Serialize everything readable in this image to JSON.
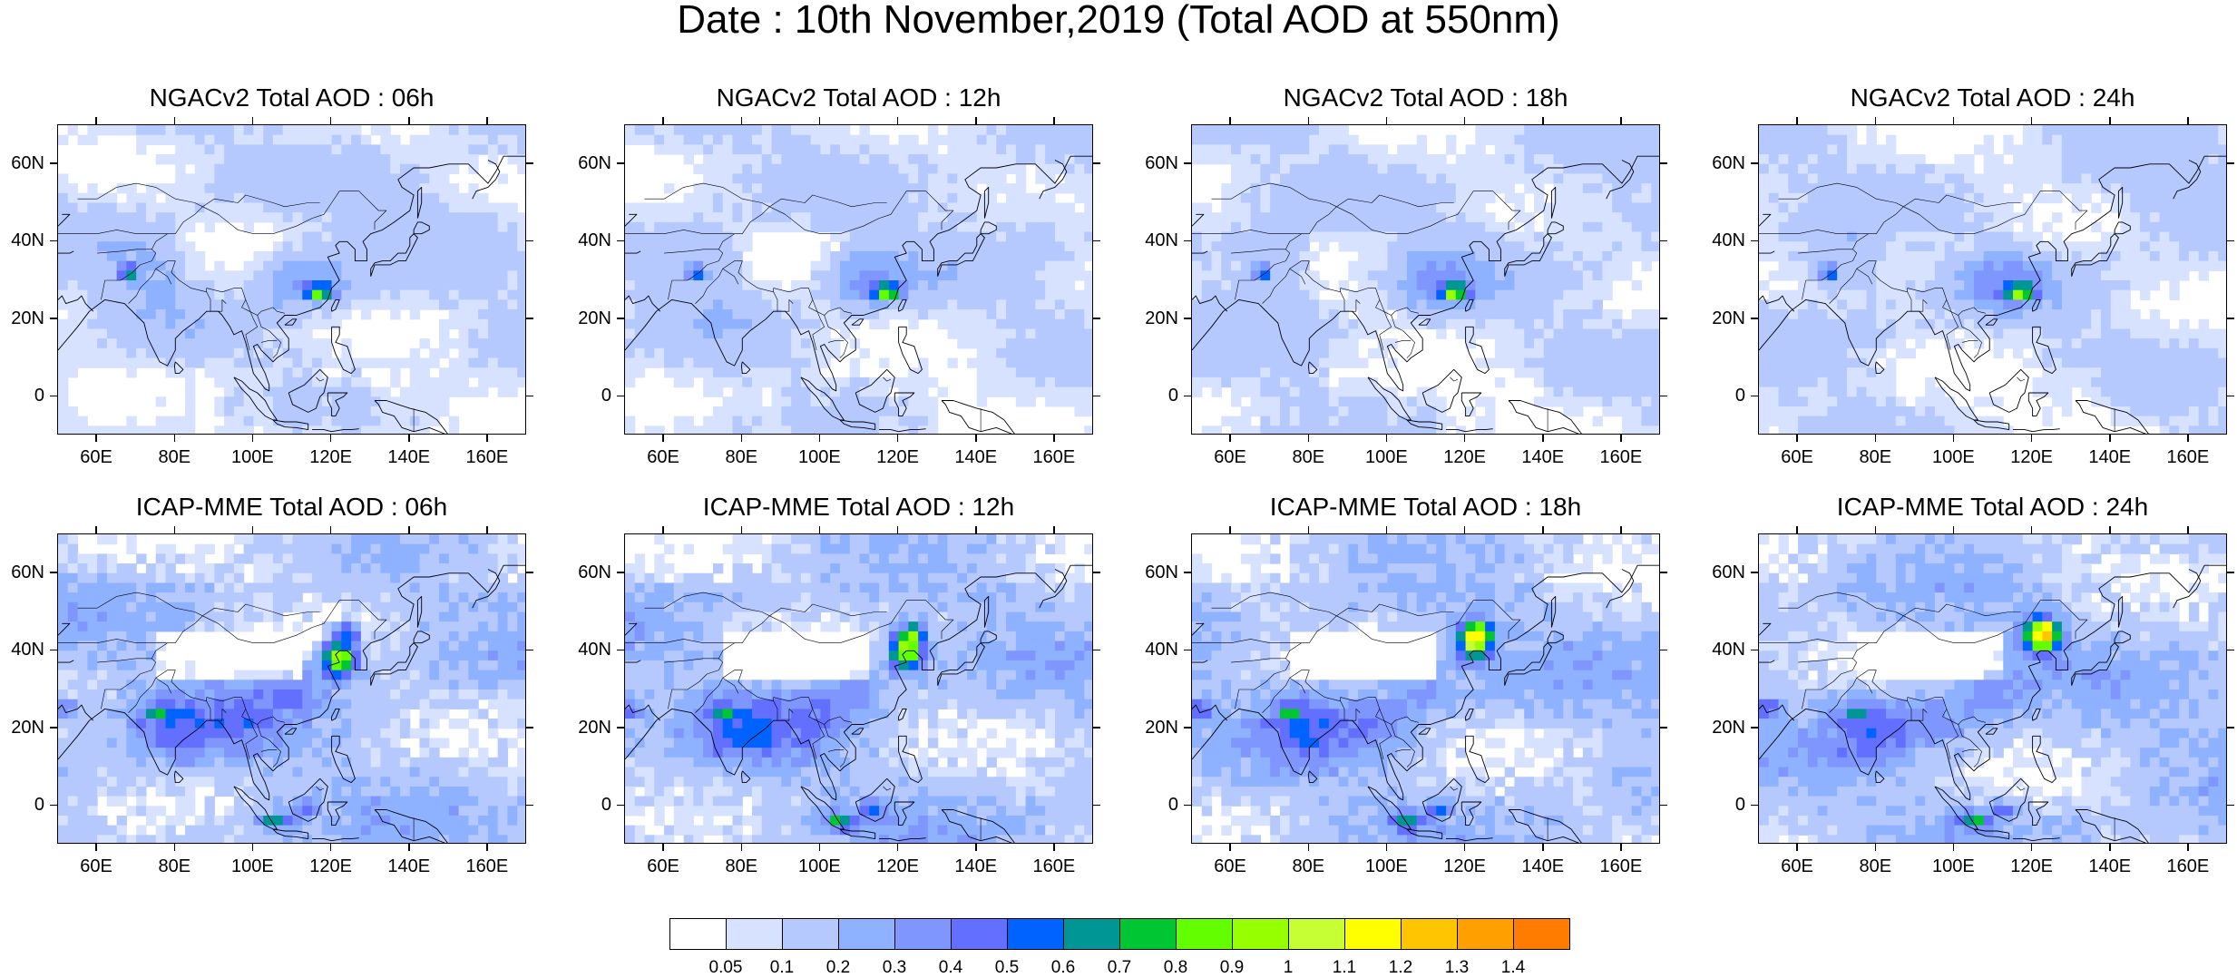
{
  "title": "Date : 10th November,2019 (Total AOD at 550nm)",
  "panels": [
    {
      "title": "NGACv2 Total AOD : 06h",
      "model": "NGACv2",
      "forecast_hour": "06h"
    },
    {
      "title": "NGACv2 Total AOD : 12h",
      "model": "NGACv2",
      "forecast_hour": "12h"
    },
    {
      "title": "NGACv2 Total AOD : 18h",
      "model": "NGACv2",
      "forecast_hour": "18h"
    },
    {
      "title": "NGACv2 Total AOD : 24h",
      "model": "NGACv2",
      "forecast_hour": "24h"
    },
    {
      "title": "ICAP-MME Total AOD : 06h",
      "model": "ICAP-MME",
      "forecast_hour": "06h"
    },
    {
      "title": "ICAP-MME Total AOD : 12h",
      "model": "ICAP-MME",
      "forecast_hour": "12h"
    },
    {
      "title": "ICAP-MME Total AOD : 18h",
      "model": "ICAP-MME",
      "forecast_hour": "18h"
    },
    {
      "title": "ICAP-MME Total AOD : 24h",
      "model": "ICAP-MME",
      "forecast_hour": "24h"
    }
  ],
  "map_extent": {
    "lon": [
      50,
      170
    ],
    "lat": [
      -10,
      70
    ]
  },
  "x_ticks": [
    "60E",
    "80E",
    "100E",
    "120E",
    "140E",
    "160E"
  ],
  "x_tick_values": [
    60,
    80,
    100,
    120,
    140,
    160
  ],
  "y_ticks": [
    "60N",
    "40N",
    "20N",
    "0"
  ],
  "y_tick_values": [
    60,
    40,
    20,
    0
  ],
  "colorbar": {
    "labels": [
      "0.05",
      "0.1",
      "0.2",
      "0.3",
      "0.4",
      "0.5",
      "0.6",
      "0.7",
      "0.8",
      "0.9",
      "1",
      "1.1",
      "1.2",
      "1.3",
      "1.4"
    ],
    "colors": [
      "#ffffff",
      "#d6e2ff",
      "#b5c9ff",
      "#8eb2ff",
      "#7f96ff",
      "#6370ff",
      "#0063ff",
      "#009696",
      "#00c633",
      "#63ff00",
      "#96ff00",
      "#c6ff33",
      "#ffff00",
      "#ffc600",
      "#ffa000",
      "#ff7c00",
      "#ff1900"
    ]
  }
}
